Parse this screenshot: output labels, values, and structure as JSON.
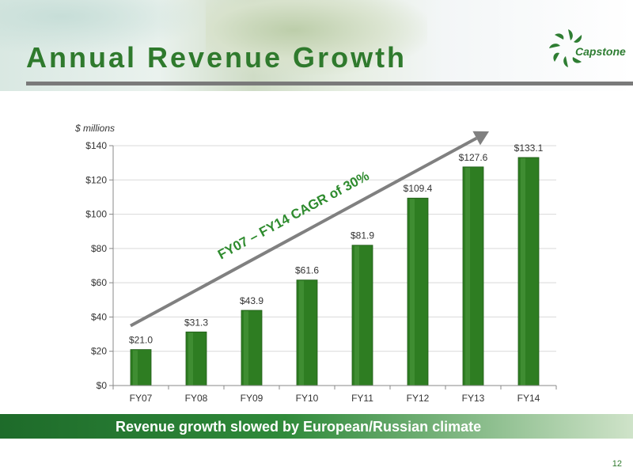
{
  "slide": {
    "title": "Annual Revenue Growth",
    "footer": "Revenue growth slowed by European/Russian climate",
    "page_number": "12",
    "logo_text": "Capstone"
  },
  "colors": {
    "brand_green": "#2f7a2d",
    "bar_green": "#2e7d22",
    "arrow_gray": "#808080",
    "rule_gray": "#7a7a7a"
  },
  "chart_data": {
    "type": "bar",
    "unit_label": "$ millions",
    "categories": [
      "FY07",
      "FY08",
      "FY09",
      "FY10",
      "FY11",
      "FY12",
      "FY13",
      "FY14"
    ],
    "values": [
      21.0,
      31.3,
      43.9,
      61.6,
      81.9,
      109.4,
      127.6,
      133.1
    ],
    "data_labels": [
      "$21.0",
      "$31.3",
      "$43.9",
      "$61.6",
      "$81.9",
      "$109.4",
      "$127.6",
      "$133.1"
    ],
    "ylim": [
      0,
      140
    ],
    "yticks": [
      0,
      20,
      40,
      60,
      80,
      100,
      120,
      140
    ],
    "ytick_labels": [
      "$0",
      "$20",
      "$40",
      "$60",
      "$80",
      "$100",
      "$120",
      "$140"
    ],
    "grid": true,
    "annotation": "FY07 – FY14 CAGR of 30%"
  }
}
